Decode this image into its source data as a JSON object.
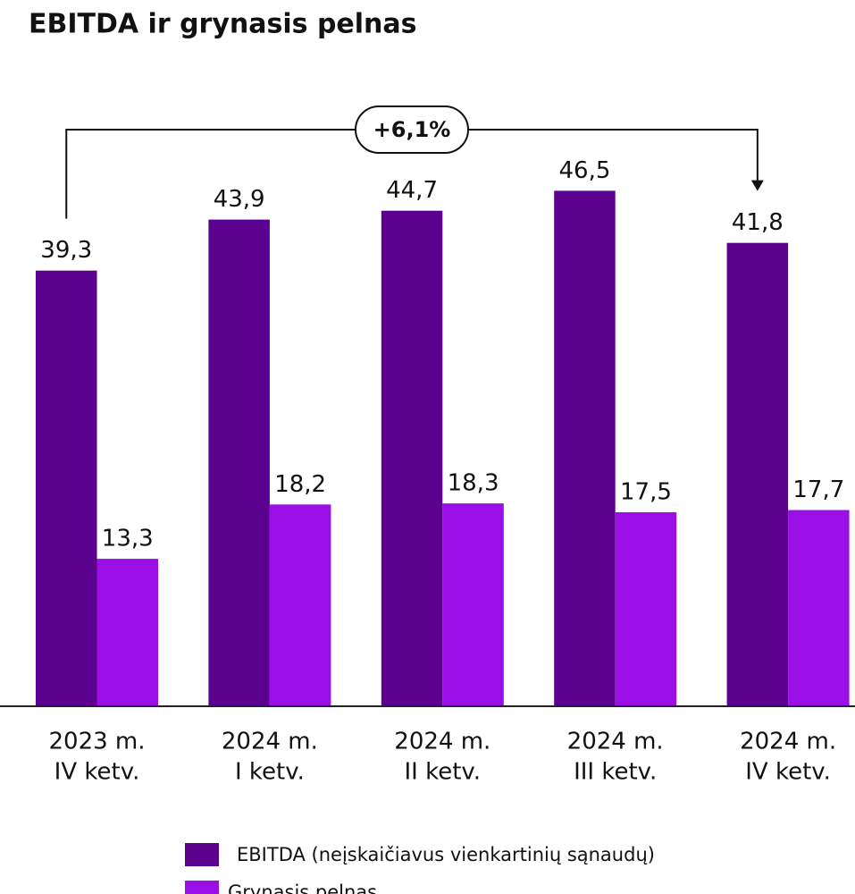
{
  "chart_data": {
    "type": "bar",
    "title": "EBITDA ir grynasis pelnas",
    "categories": [
      [
        "2023 m.",
        "IV ketv."
      ],
      [
        "2024 m.",
        "I ketv."
      ],
      [
        "2024 m.",
        "II ketv."
      ],
      [
        "2024 m.",
        "III ketv."
      ],
      [
        "2024 m.",
        "IV ketv."
      ]
    ],
    "series": [
      {
        "name": "EBITDA (neįskaičiavus vienkartinių sąnaudų)",
        "color": "#5b008f",
        "values": [
          39.3,
          43.9,
          44.7,
          46.5,
          41.8
        ],
        "value_labels": [
          "39,3",
          "43,9",
          "44,7",
          "46,5",
          "41,8"
        ]
      },
      {
        "name": "Grynasis pelnas",
        "color": "#9a0fe6",
        "values": [
          13.3,
          18.2,
          18.3,
          17.5,
          17.7
        ],
        "value_labels": [
          "13,3",
          "18,2",
          "18,3",
          "17,5",
          "17,7"
        ]
      }
    ],
    "annotation": "+6,1%",
    "ylim": [
      0,
      50
    ]
  }
}
